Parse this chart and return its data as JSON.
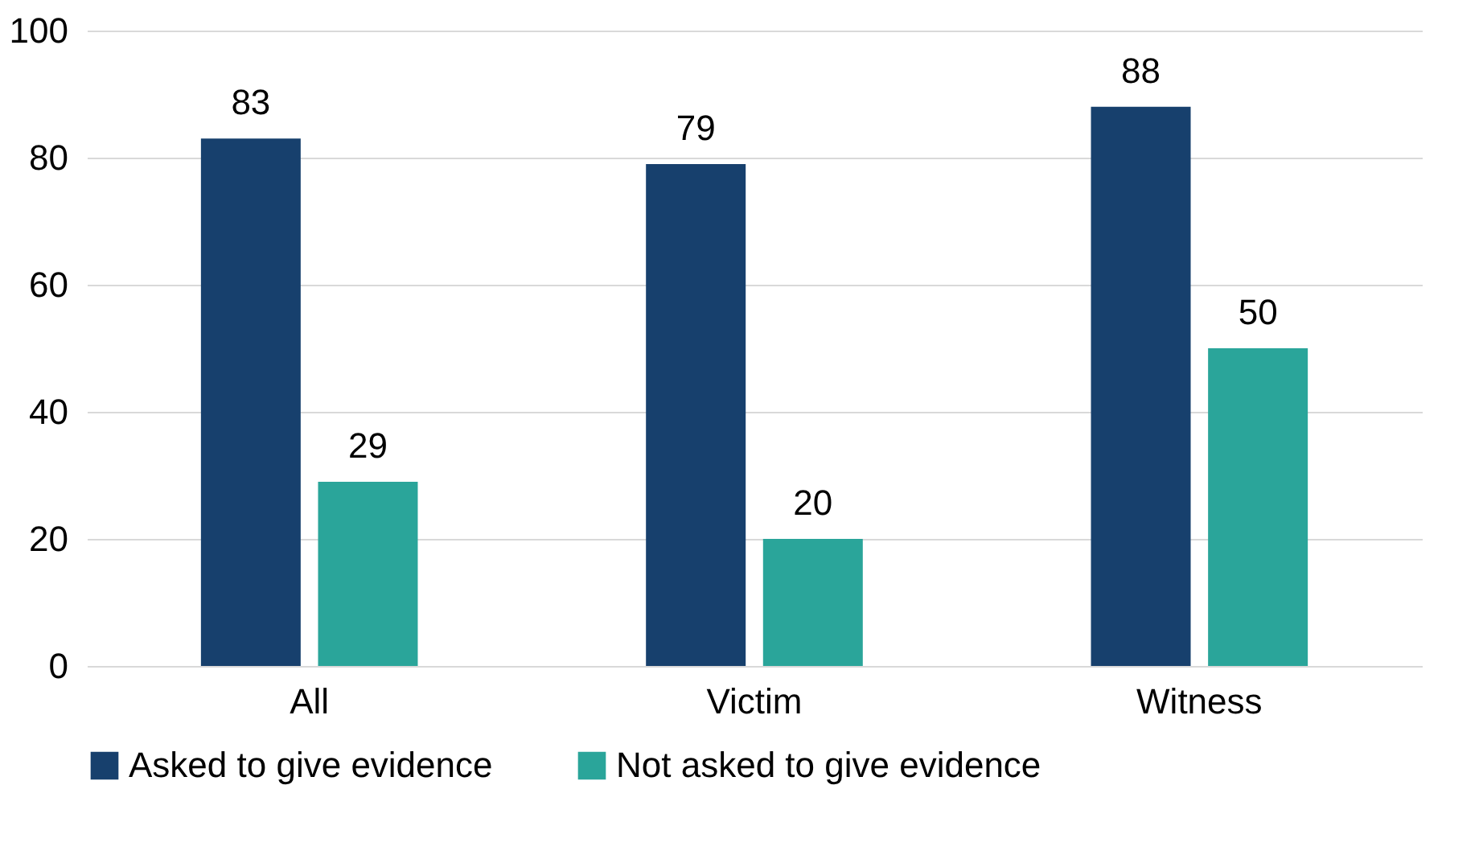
{
  "chart_data": {
    "type": "bar",
    "categories": [
      "All",
      "Victim",
      "Witness"
    ],
    "series": [
      {
        "name": "Asked to give evidence",
        "color": "#17406d",
        "values": [
          83,
          79,
          88
        ]
      },
      {
        "name": "Not asked to give evidence",
        "color": "#2aa59a",
        "values": [
          29,
          20,
          50
        ]
      }
    ],
    "ylim": [
      0,
      100
    ],
    "yticks": [
      0,
      20,
      40,
      60,
      80,
      100
    ],
    "grid": "y",
    "legend": "bottom",
    "data_labels": true
  }
}
